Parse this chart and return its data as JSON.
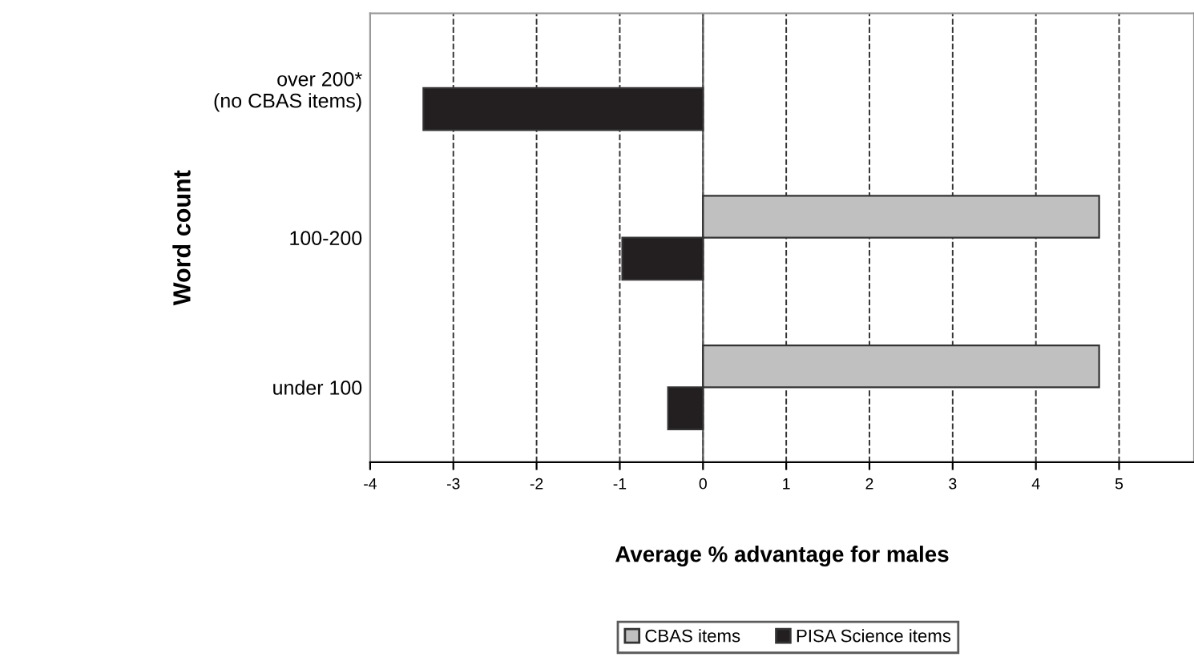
{
  "chart_data": {
    "type": "bar",
    "orientation": "horizontal",
    "xlabel": "Average % advantage for males",
    "ylabel": "Word count",
    "categories": [
      "over 200*\n(no CBAS items)",
      "100-200",
      "under 100"
    ],
    "series": [
      {
        "name": "CBAS items",
        "color": "#c0c0c0",
        "values": [
          null,
          4.76,
          4.76
        ]
      },
      {
        "name": "PISA Science items",
        "color": "#231f20",
        "values": [
          -3.36,
          -0.97,
          -0.42
        ]
      }
    ],
    "xlim": [
      -4,
      5.9
    ],
    "xticks": [
      -4,
      -3,
      -2,
      -1,
      0,
      1,
      2,
      3,
      4,
      5
    ],
    "grid": "x",
    "legend": "bottom"
  }
}
